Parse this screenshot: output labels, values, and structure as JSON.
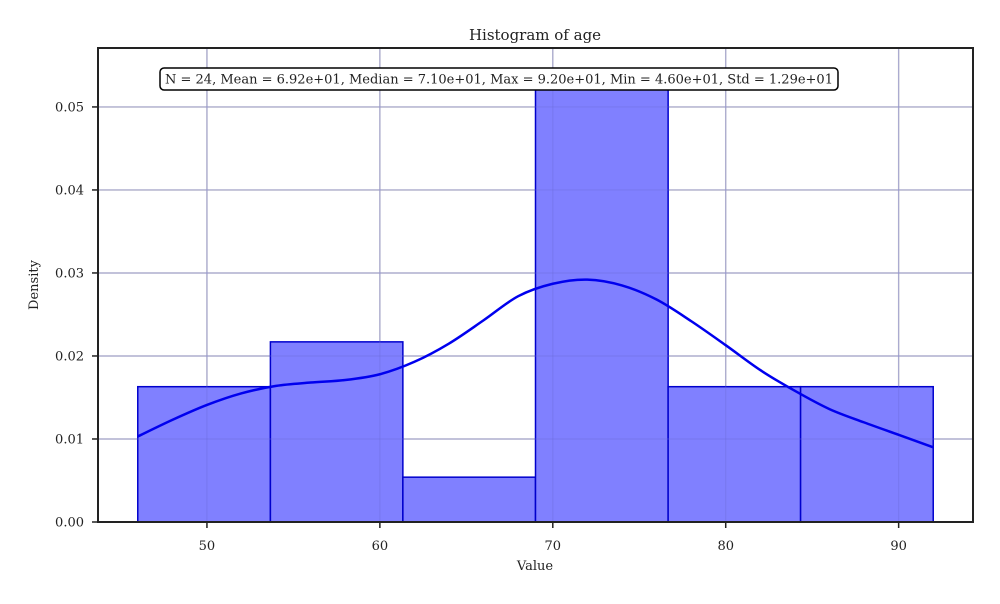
{
  "chart_data": {
    "type": "histogram",
    "title": "Histogram of age",
    "xlabel": "Value",
    "ylabel": "Density",
    "xlim": [
      43.7,
      94.3
    ],
    "ylim": [
      0,
      0.0571
    ],
    "xticks": [
      50,
      60,
      70,
      80,
      90
    ],
    "yticks": [
      0.0,
      0.01,
      0.02,
      0.03,
      0.04,
      0.05
    ],
    "grid": true,
    "stats_annotation": "N = 24, Mean = 6.92e+01, Median = 7.10e+01, Max = 9.20e+01, Min = 4.60e+01, Std = 1.29e+01",
    "bins": [
      {
        "x0": 46.0,
        "x1": 53.67,
        "density": 0.0163
      },
      {
        "x0": 53.67,
        "x1": 61.33,
        "density": 0.0217
      },
      {
        "x0": 61.33,
        "x1": 69.0,
        "density": 0.0054
      },
      {
        "x0": 69.0,
        "x1": 76.67,
        "density": 0.0543
      },
      {
        "x0": 76.67,
        "x1": 84.33,
        "density": 0.0163
      },
      {
        "x0": 84.33,
        "x1": 92.0,
        "density": 0.0163
      }
    ],
    "kde": {
      "x": [
        46,
        48,
        50,
        52,
        54,
        56,
        58,
        60,
        62,
        64,
        66,
        68,
        70,
        72,
        74,
        76,
        78,
        80,
        82,
        84,
        86,
        88,
        90,
        92
      ],
      "y": [
        0.0103,
        0.0123,
        0.0141,
        0.0155,
        0.0164,
        0.0168,
        0.0171,
        0.0178,
        0.0193,
        0.0215,
        0.0243,
        0.0272,
        0.0287,
        0.0292,
        0.0285,
        0.0268,
        0.0242,
        0.0213,
        0.0183,
        0.0158,
        0.0136,
        0.012,
        0.0105,
        0.009
      ]
    },
    "colors": {
      "bar_fill": "#8080ff",
      "bar_edge": "#0000cc",
      "kde_line": "#0000ee",
      "grid": "#cccccc",
      "axes": "#222222"
    }
  }
}
